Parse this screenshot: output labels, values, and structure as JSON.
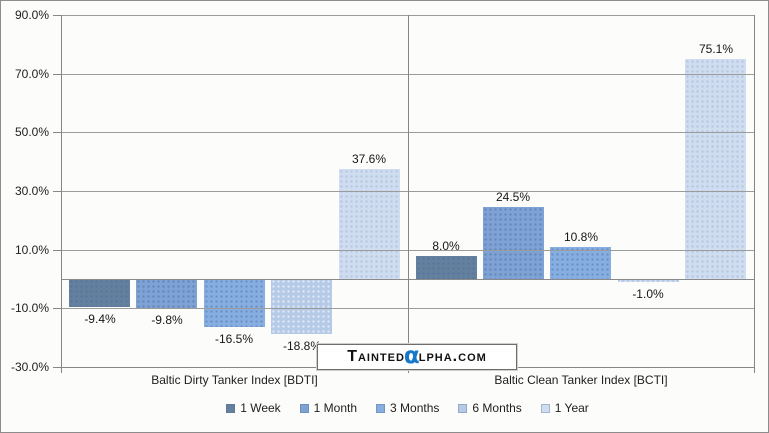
{
  "chart_data": {
    "type": "bar",
    "title": "",
    "categories": [
      "Baltic Dirty Tanker Index [BDTI]",
      "Baltic Clean Tanker Index [BCTI]"
    ],
    "series": [
      {
        "name": "1 Week",
        "color": "#64809F",
        "dot_style": "dots-subtle",
        "values": [
          -9.4,
          8.0
        ]
      },
      {
        "name": "1 Month",
        "color": "#7EA2D3",
        "dot_style": "dots-dark",
        "values": [
          -9.8,
          24.5
        ]
      },
      {
        "name": "3 Months",
        "color": "#87AEE0",
        "dot_style": "dots-dark",
        "values": [
          -16.5,
          10.8
        ]
      },
      {
        "name": "6 Months",
        "color": "#B5CAE6",
        "dot_style": "dots-light",
        "values": [
          -18.8,
          -1.0
        ]
      },
      {
        "name": "1 Year",
        "color": "#CEDDEF",
        "dot_style": "dots-subtle",
        "values": [
          37.6,
          75.1
        ]
      }
    ],
    "value_labels": [
      [
        "-9.4%",
        "-9.8%",
        "-16.5%",
        "-18.8%",
        "37.6%"
      ],
      [
        "8.0%",
        "24.5%",
        "10.8%",
        "-1.0%",
        "75.1%"
      ]
    ],
    "y_ticks": [
      "90.0%",
      "70.0%",
      "50.0%",
      "30.0%",
      "10.0%",
      "-10.0%",
      "-30.0%"
    ],
    "ylim": [
      -30,
      90
    ],
    "grid": true,
    "legend_position": "bottom"
  },
  "watermark": {
    "part1": "Tainted",
    "alpha": "α",
    "part2": "lpha.com",
    "alpha_color": "#1878C8"
  }
}
